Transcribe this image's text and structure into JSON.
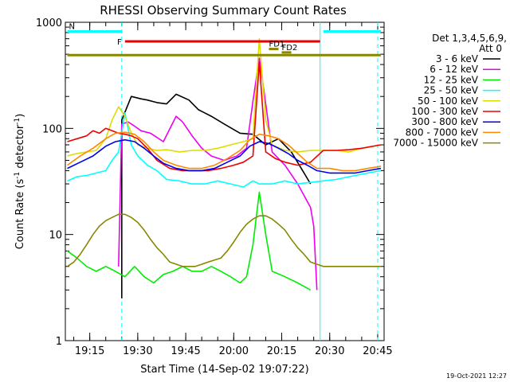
{
  "chart_data": {
    "type": "line",
    "title": "RHESSI Observing Summary Count Rates",
    "xlabel": "Start Time (14-Sep-02 19:07:22)",
    "ylabel": "Count Rate (s⁻¹ detector⁻¹)",
    "ylabel_main": "Count Rate (s",
    "ylabel_sup1": "-1",
    "ylabel_mid": " detector",
    "ylabel_sup2": "-1",
    "ylabel_end": ")",
    "y_scale": "log",
    "ylim": [
      1,
      1000
    ],
    "xlim": [
      "19:07:22",
      "20:47:00"
    ],
    "y_ticks": [
      {
        "v": 1,
        "label": "1"
      },
      {
        "v": 10,
        "label": "10"
      },
      {
        "v": 100,
        "label": "100"
      },
      {
        "v": 1000,
        "label": "1000"
      }
    ],
    "x_ticks": [
      "19:15",
      "19:30",
      "19:45",
      "20:00",
      "20:15",
      "20:30",
      "20:45"
    ],
    "legend_header": [
      "Det 1,3,4,5,6,9,",
      "Att 0"
    ],
    "legend_placement": "right",
    "timestamp": "19-Oct-2021 12:27",
    "series": [
      {
        "name": "3 - 6 keV",
        "color": "#000000",
        "points": [
          [
            "19:25",
            2.5
          ],
          [
            "19:25",
            120
          ],
          [
            "19:28",
            200
          ],
          [
            "19:31",
            190
          ],
          [
            "19:33",
            185
          ],
          [
            "19:36",
            175
          ],
          [
            "19:39",
            170
          ],
          [
            "19:42",
            210
          ],
          [
            "19:46",
            185
          ],
          [
            "19:49",
            150
          ],
          [
            "19:53",
            130
          ],
          [
            "19:57",
            110
          ],
          [
            "20:02",
            90
          ],
          [
            "20:06",
            88
          ],
          [
            "20:10",
            70
          ],
          [
            "20:14",
            80
          ],
          [
            "20:18",
            60
          ],
          [
            "20:22",
            38
          ],
          [
            "20:24",
            30
          ]
        ]
      },
      {
        "name": "6 - 12 keV",
        "color": "#ee00ee",
        "points": [
          [
            "19:24",
            5
          ],
          [
            "19:25",
            110
          ],
          [
            "19:27",
            115
          ],
          [
            "19:29",
            105
          ],
          [
            "19:31",
            95
          ],
          [
            "19:34",
            90
          ],
          [
            "19:38",
            75
          ],
          [
            "19:42",
            130
          ],
          [
            "19:44",
            115
          ],
          [
            "19:47",
            85
          ],
          [
            "19:50",
            65
          ],
          [
            "19:53",
            55
          ],
          [
            "19:57",
            50
          ],
          [
            "20:01",
            55
          ],
          [
            "20:04",
            65
          ],
          [
            "20:06",
            180
          ],
          [
            "20:08",
            460
          ],
          [
            "20:10",
            170
          ],
          [
            "20:12",
            60
          ],
          [
            "20:16",
            45
          ],
          [
            "20:20",
            30
          ],
          [
            "20:24",
            18
          ],
          [
            "20:25",
            12
          ],
          [
            "20:26",
            3
          ]
        ]
      },
      {
        "name": "12 - 25 keV",
        "color": "#00ee00",
        "points": [
          [
            "19:08",
            7
          ],
          [
            "19:11",
            6
          ],
          [
            "19:14",
            5
          ],
          [
            "19:17",
            4.5
          ],
          [
            "19:20",
            5
          ],
          [
            "19:23",
            4.5
          ],
          [
            "19:26",
            4
          ],
          [
            "19:29",
            5
          ],
          [
            "19:32",
            4
          ],
          [
            "19:35",
            3.5
          ],
          [
            "19:38",
            4.2
          ],
          [
            "19:41",
            4.5
          ],
          [
            "19:44",
            5
          ],
          [
            "19:47",
            4.5
          ],
          [
            "19:50",
            4.5
          ],
          [
            "19:53",
            5
          ],
          [
            "19:56",
            4.5
          ],
          [
            "19:59",
            4
          ],
          [
            "20:02",
            3.5
          ],
          [
            "20:04",
            4
          ],
          [
            "20:06",
            8
          ],
          [
            "20:08",
            25
          ],
          [
            "20:10",
            10
          ],
          [
            "20:12",
            4.5
          ],
          [
            "20:16",
            4
          ],
          [
            "20:20",
            3.5
          ],
          [
            "20:24",
            3
          ]
        ]
      },
      {
        "name": "25 - 50 keV",
        "color": "#00ffff",
        "points": [
          [
            "19:08",
            32
          ],
          [
            "19:11",
            35
          ],
          [
            "19:14",
            36
          ],
          [
            "19:17",
            38
          ],
          [
            "19:20",
            40
          ],
          [
            "19:22",
            50
          ],
          [
            "19:24",
            60
          ],
          [
            "19:26",
            140
          ],
          [
            "19:28",
            70
          ],
          [
            "19:30",
            55
          ],
          [
            "19:33",
            45
          ],
          [
            "19:36",
            40
          ],
          [
            "19:39",
            33
          ],
          [
            "19:43",
            32
          ],
          [
            "19:47",
            30
          ],
          [
            "19:51",
            30
          ],
          [
            "19:55",
            32
          ],
          [
            "19:59",
            30
          ],
          [
            "20:03",
            28
          ],
          [
            "20:06",
            32
          ],
          [
            "20:08",
            30
          ],
          [
            "20:12",
            30
          ],
          [
            "20:16",
            32
          ],
          [
            "20:20",
            30
          ],
          [
            "20:24",
            31
          ],
          [
            "20:28",
            32
          ],
          [
            "20:32",
            33
          ],
          [
            "20:36",
            35
          ],
          [
            "20:40",
            37
          ],
          [
            "20:46",
            40
          ]
        ]
      },
      {
        "name": "50 - 100 keV",
        "color": "#dddd00",
        "points": [
          [
            "19:08",
            55
          ],
          [
            "19:11",
            58
          ],
          [
            "19:14",
            60
          ],
          [
            "19:17",
            62
          ],
          [
            "19:20",
            80
          ],
          [
            "19:22",
            120
          ],
          [
            "19:24",
            160
          ],
          [
            "19:26",
            130
          ],
          [
            "19:28",
            90
          ],
          [
            "19:30",
            70
          ],
          [
            "19:33",
            65
          ],
          [
            "19:36",
            62
          ],
          [
            "19:39",
            63
          ],
          [
            "19:43",
            60
          ],
          [
            "19:47",
            62
          ],
          [
            "19:51",
            62
          ],
          [
            "19:55",
            65
          ],
          [
            "19:59",
            70
          ],
          [
            "20:03",
            75
          ],
          [
            "20:06",
            80
          ],
          [
            "20:08",
            700
          ],
          [
            "20:10",
            120
          ],
          [
            "20:12",
            70
          ],
          [
            "20:16",
            62
          ],
          [
            "20:20",
            60
          ],
          [
            "20:24",
            62
          ],
          [
            "20:28",
            62
          ],
          [
            "20:32",
            62
          ],
          [
            "20:36",
            60
          ],
          [
            "20:40",
            65
          ],
          [
            "20:46",
            70
          ]
        ]
      },
      {
        "name": "100 - 300 keV",
        "color": "#ee0000",
        "points": [
          [
            "19:08",
            75
          ],
          [
            "19:11",
            80
          ],
          [
            "19:14",
            85
          ],
          [
            "19:16",
            95
          ],
          [
            "19:18",
            90
          ],
          [
            "19:20",
            100
          ],
          [
            "19:22",
            95
          ],
          [
            "19:24",
            90
          ],
          [
            "19:26",
            88
          ],
          [
            "19:28",
            85
          ],
          [
            "19:30",
            80
          ],
          [
            "19:33",
            65
          ],
          [
            "19:36",
            50
          ],
          [
            "19:40",
            42
          ],
          [
            "19:44",
            40
          ],
          [
            "19:48",
            40
          ],
          [
            "19:52",
            40
          ],
          [
            "19:56",
            42
          ],
          [
            "20:00",
            45
          ],
          [
            "20:03",
            48
          ],
          [
            "20:06",
            55
          ],
          [
            "20:08",
            420
          ],
          [
            "20:10",
            60
          ],
          [
            "20:13",
            52
          ],
          [
            "20:16",
            48
          ],
          [
            "20:20",
            45
          ],
          [
            "20:24",
            48
          ],
          [
            "20:28",
            62
          ],
          [
            "20:32",
            62
          ],
          [
            "20:36",
            63
          ],
          [
            "20:40",
            65
          ],
          [
            "20:46",
            70
          ]
        ]
      },
      {
        "name": "300 - 800 keV",
        "color": "#0000ee",
        "points": [
          [
            "19:08",
            42
          ],
          [
            "19:12",
            48
          ],
          [
            "19:16",
            55
          ],
          [
            "19:20",
            68
          ],
          [
            "19:23",
            75
          ],
          [
            "19:26",
            78
          ],
          [
            "19:29",
            75
          ],
          [
            "19:32",
            65
          ],
          [
            "19:35",
            55
          ],
          [
            "19:38",
            47
          ],
          [
            "19:42",
            42
          ],
          [
            "19:46",
            40
          ],
          [
            "19:50",
            40
          ],
          [
            "19:54",
            42
          ],
          [
            "19:58",
            48
          ],
          [
            "20:02",
            55
          ],
          [
            "20:05",
            68
          ],
          [
            "20:08",
            75
          ],
          [
            "20:11",
            72
          ],
          [
            "20:14",
            65
          ],
          [
            "20:17",
            58
          ],
          [
            "20:20",
            50
          ],
          [
            "20:23",
            45
          ],
          [
            "20:26",
            40
          ],
          [
            "20:30",
            38
          ],
          [
            "20:34",
            38
          ],
          [
            "20:38",
            38
          ],
          [
            "20:42",
            40
          ],
          [
            "20:46",
            42
          ]
        ]
      },
      {
        "name": "800 - 7000 keV",
        "color": "#ff8800",
        "points": [
          [
            "19:08",
            45
          ],
          [
            "19:12",
            55
          ],
          [
            "19:16",
            65
          ],
          [
            "19:20",
            80
          ],
          [
            "19:23",
            90
          ],
          [
            "19:26",
            92
          ],
          [
            "19:29",
            88
          ],
          [
            "19:32",
            75
          ],
          [
            "19:35",
            60
          ],
          [
            "19:38",
            50
          ],
          [
            "19:42",
            45
          ],
          [
            "19:46",
            42
          ],
          [
            "19:50",
            42
          ],
          [
            "19:54",
            45
          ],
          [
            "19:58",
            52
          ],
          [
            "20:02",
            62
          ],
          [
            "20:05",
            78
          ],
          [
            "20:08",
            88
          ],
          [
            "20:11",
            85
          ],
          [
            "20:14",
            80
          ],
          [
            "20:17",
            70
          ],
          [
            "20:20",
            58
          ],
          [
            "20:23",
            48
          ],
          [
            "20:26",
            42
          ],
          [
            "20:30",
            42
          ],
          [
            "20:34",
            40
          ],
          [
            "20:38",
            40
          ],
          [
            "20:42",
            42
          ],
          [
            "20:46",
            44
          ]
        ]
      },
      {
        "name": "7000 - 15000 keV",
        "color": "#888800",
        "points": [
          [
            "19:08",
            5
          ],
          [
            "19:10",
            5.5
          ],
          [
            "19:12",
            6.5
          ],
          [
            "19:14",
            8
          ],
          [
            "19:16",
            10
          ],
          [
            "19:18",
            12
          ],
          [
            "19:20",
            13.5
          ],
          [
            "19:22",
            14.5
          ],
          [
            "19:24",
            15.5
          ],
          [
            "19:26",
            15.5
          ],
          [
            "19:28",
            14.5
          ],
          [
            "19:30",
            13
          ],
          [
            "19:32",
            11
          ],
          [
            "19:34",
            9
          ],
          [
            "19:36",
            7.5
          ],
          [
            "19:38",
            6.5
          ],
          [
            "19:40",
            5.5
          ],
          [
            "19:44",
            5
          ],
          [
            "19:48",
            5
          ],
          [
            "19:52",
            5.5
          ],
          [
            "19:56",
            6
          ],
          [
            "19:58",
            7
          ],
          [
            "20:00",
            8.5
          ],
          [
            "20:02",
            10.5
          ],
          [
            "20:04",
            12.5
          ],
          [
            "20:06",
            14
          ],
          [
            "20:08",
            15
          ],
          [
            "20:10",
            15
          ],
          [
            "20:12",
            14
          ],
          [
            "20:14",
            12.5
          ],
          [
            "20:16",
            11
          ],
          [
            "20:18",
            9
          ],
          [
            "20:20",
            7.5
          ],
          [
            "20:22",
            6.5
          ],
          [
            "20:24",
            5.5
          ],
          [
            "20:28",
            5
          ],
          [
            "20:32",
            5
          ],
          [
            "20:36",
            5
          ],
          [
            "20:40",
            5
          ],
          [
            "20:46",
            5
          ]
        ]
      }
    ],
    "flag_bars": [
      {
        "label": "N",
        "color": "#00ffff",
        "segments": [
          [
            "19:08",
            "19:25"
          ],
          [
            "20:28",
            "20:46"
          ]
        ],
        "level": 820
      },
      {
        "label": "F",
        "color": "#ee0000",
        "segments": [
          [
            "19:26",
            "20:27"
          ]
        ],
        "level": 660
      },
      {
        "label": "FD1",
        "color": "#888800",
        "segments": [
          [
            "20:11",
            "20:14"
          ]
        ],
        "level": 560
      },
      {
        "label": "FD2",
        "color": "#888800",
        "segments": [
          [
            "20:15",
            "20:18"
          ]
        ],
        "level": 520
      },
      {
        "label": "",
        "color": "#888800",
        "segments": [
          [
            "19:08",
            "20:46"
          ]
        ],
        "level": 490
      }
    ],
    "markers": [
      {
        "time": "19:25",
        "color": "#00ffff",
        "style": "dashed"
      },
      {
        "time": "20:27",
        "color": "#00ffff",
        "style": "solid"
      },
      {
        "time": "20:45",
        "color": "#00ffff",
        "style": "dashed"
      }
    ]
  }
}
